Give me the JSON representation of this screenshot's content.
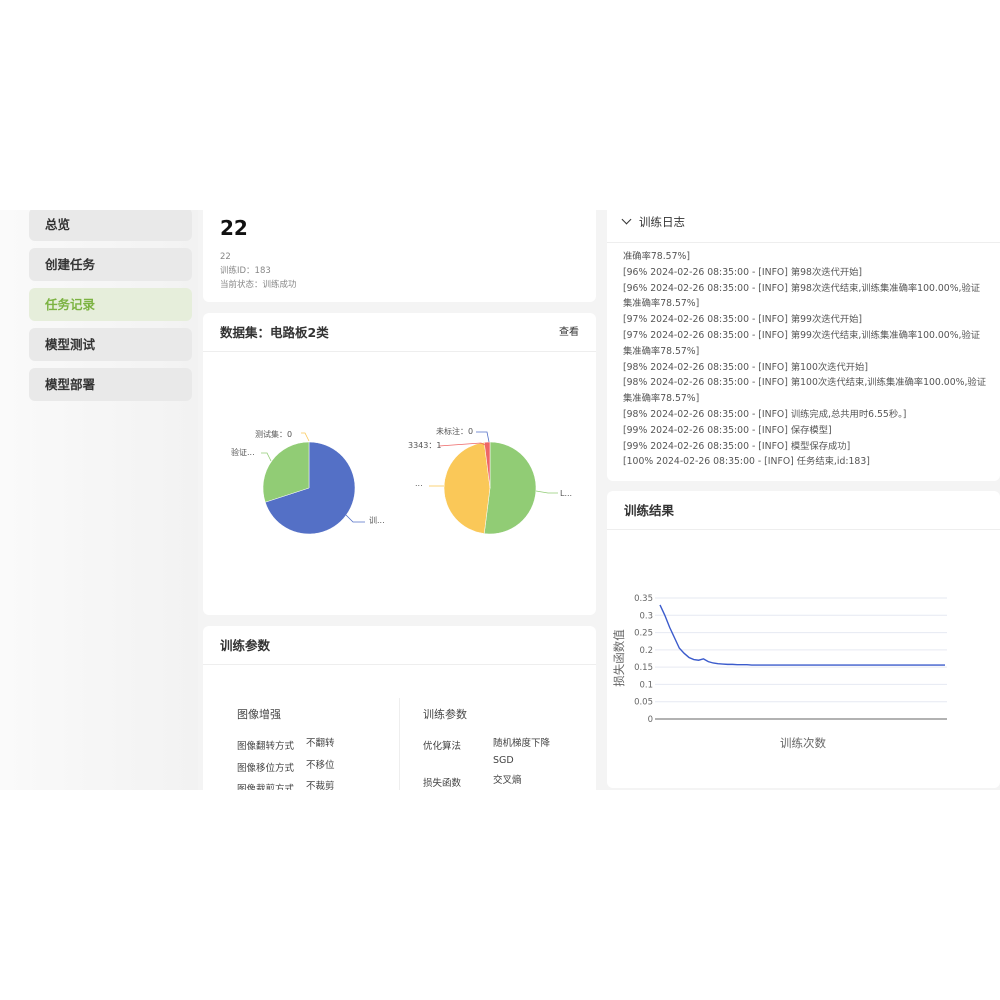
{
  "sidebar": {
    "items": [
      {
        "label": "总览"
      },
      {
        "label": "创建任务"
      },
      {
        "label": "任务记录",
        "active": true
      },
      {
        "label": "模型测试"
      },
      {
        "label": "模型部署"
      }
    ]
  },
  "task": {
    "title": "22",
    "name": "22",
    "id_line": "训练ID：183",
    "status_line": "当前状态：训练成功"
  },
  "dataset": {
    "title": "数据集：电路板2类",
    "view_label": "查看",
    "pie1": {
      "slices": [
        {
          "label": "训...",
          "value": 70,
          "color": "#5470c6"
        },
        {
          "label": "验证...",
          "value": 30,
          "color": "#91cc75"
        },
        {
          "label": "测试集：0",
          "value": 0,
          "color": "#fac858"
        }
      ]
    },
    "pie2": {
      "slices": [
        {
          "label": "L...",
          "value": 52,
          "color": "#91cc75"
        },
        {
          "label": "...",
          "value": 46,
          "color": "#fac858"
        },
        {
          "label": "3343：1",
          "value": 2,
          "color": "#ee6666"
        },
        {
          "label": "未标注：0",
          "value": 0,
          "color": "#5470c6"
        }
      ]
    }
  },
  "params": {
    "title": "训练参数",
    "aug": {
      "title": "图像增强",
      "rows": [
        [
          "图像翻转方式",
          "不翻转"
        ],
        [
          "图像移位方式",
          "不移位"
        ],
        [
          "图像裁剪方式",
          "不裁剪"
        ]
      ]
    },
    "train": {
      "title": "训练参数",
      "rows": [
        [
          "优化算法",
          "随机梯度下降\nSGD"
        ],
        [
          "损失函数",
          "交叉熵"
        ]
      ]
    }
  },
  "log": {
    "title": "训练日志",
    "lines": [
      "准确率78.57%]",
      "[96% 2024-02-26 08:35:00 - [INFO] 第98次迭代开始]",
      "[96% 2024-02-26 08:35:00 - [INFO] 第98次迭代结束,训练集准确率100.00%,验证集准确率78.57%]",
      "[97% 2024-02-26 08:35:00 - [INFO] 第99次迭代开始]",
      "[97% 2024-02-26 08:35:00 - [INFO] 第99次迭代结束,训练集准确率100.00%,验证集准确率78.57%]",
      "[98% 2024-02-26 08:35:00 - [INFO] 第100次迭代开始]",
      "[98% 2024-02-26 08:35:00 - [INFO] 第100次迭代结束,训练集准确率100.00%,验证集准确率78.57%]",
      "[98% 2024-02-26 08:35:00 - [INFO] 训练完成,总共用时6.55秒。]",
      "[99% 2024-02-26 08:35:00 - [INFO] 保存模型]",
      "[99% 2024-02-26 08:35:00 - [INFO] 模型保存成功]",
      "[100% 2024-02-26 08:35:00 - [INFO] 任务结束,id:183]"
    ]
  },
  "result": {
    "title": "训练结果"
  },
  "chart_data": {
    "type": "line",
    "xlabel": "训练次数",
    "ylabel": "损失函数值",
    "ylim": [
      0,
      0.35
    ],
    "yticks": [
      "0",
      "0.05",
      "0.1",
      "0.15",
      "0.2",
      "0.25",
      "0.3",
      "0.35"
    ],
    "grid": true,
    "series": [
      {
        "color": "#3b5bcc",
        "values": [
          0.33,
          0.3,
          0.265,
          0.235,
          0.205,
          0.19,
          0.178,
          0.172,
          0.17,
          0.174,
          0.166,
          0.162,
          0.16,
          0.159,
          0.158,
          0.158,
          0.157,
          0.157,
          0.157,
          0.156,
          0.156,
          0.156,
          0.156,
          0.156,
          0.156,
          0.156,
          0.156,
          0.156,
          0.156,
          0.156,
          0.156,
          0.156,
          0.156,
          0.156,
          0.156,
          0.156,
          0.156,
          0.156,
          0.156,
          0.156,
          0.156,
          0.156,
          0.156,
          0.156,
          0.156,
          0.156,
          0.156,
          0.156,
          0.156,
          0.156,
          0.156,
          0.156,
          0.156,
          0.156,
          0.156,
          0.156,
          0.156,
          0.156,
          0.156,
          0.156
        ]
      }
    ]
  }
}
